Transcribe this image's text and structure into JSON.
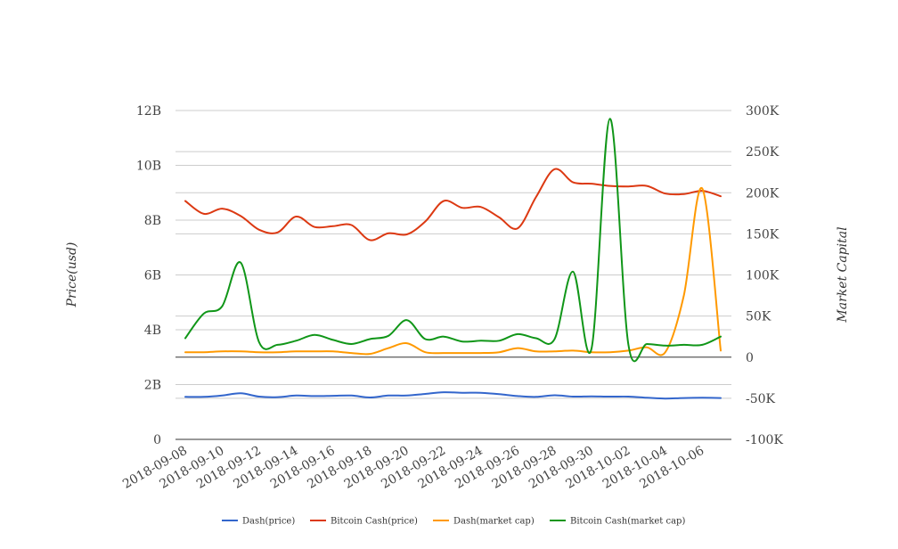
{
  "chart_data": {
    "type": "line",
    "title": "",
    "ylabel": "Price(usd)",
    "y2label": "Market Capital",
    "ylim": [
      0,
      12000000000
    ],
    "y2lim": [
      -100000,
      300000
    ],
    "y_ticks": [
      "0",
      "2B",
      "4B",
      "6B",
      "8B",
      "10B",
      "12B"
    ],
    "y_tick_values": [
      0,
      2000000000,
      4000000000,
      6000000000,
      8000000000,
      10000000000,
      12000000000
    ],
    "y2_ticks": [
      "-100K",
      "-50K",
      "0",
      "50K",
      "100K",
      "150K",
      "200K",
      "250K",
      "300K"
    ],
    "y2_tick_values": [
      -100000,
      -50000,
      0,
      50000,
      100000,
      150000,
      200000,
      250000,
      300000
    ],
    "x": [
      "2018-09-08",
      "2018-09-09",
      "2018-09-10",
      "2018-09-11",
      "2018-09-12",
      "2018-09-13",
      "2018-09-14",
      "2018-09-15",
      "2018-09-16",
      "2018-09-17",
      "2018-09-18",
      "2018-09-19",
      "2018-09-20",
      "2018-09-21",
      "2018-09-22",
      "2018-09-23",
      "2018-09-24",
      "2018-09-25",
      "2018-09-26",
      "2018-09-27",
      "2018-09-28",
      "2018-09-29",
      "2018-09-30",
      "2018-10-01",
      "2018-10-02",
      "2018-10-03",
      "2018-10-04",
      "2018-10-05",
      "2018-10-06",
      "2018-10-07"
    ],
    "x_tick_labels": [
      "2018-09-08",
      "2018-09-10",
      "2018-09-12",
      "2018-09-14",
      "2018-09-16",
      "2018-09-18",
      "2018-09-20",
      "2018-09-22",
      "2018-09-24",
      "2018-09-26",
      "2018-09-28",
      "2018-09-30",
      "2018-10-02",
      "2018-10-04",
      "2018-10-06"
    ],
    "grid": true,
    "legend_position": "bottom",
    "series": [
      {
        "name": "Dash(price)",
        "axis": "left",
        "color": "#3366cc",
        "values": [
          1550000000,
          1550000000,
          1600000000,
          1680000000,
          1560000000,
          1540000000,
          1600000000,
          1580000000,
          1590000000,
          1600000000,
          1530000000,
          1600000000,
          1600000000,
          1660000000,
          1720000000,
          1700000000,
          1700000000,
          1650000000,
          1580000000,
          1550000000,
          1610000000,
          1560000000,
          1570000000,
          1560000000,
          1560000000,
          1520000000,
          1490000000,
          1510000000,
          1520000000,
          1510000000
        ]
      },
      {
        "name": "Bitcoin Cash(price)",
        "axis": "left",
        "color": "#dc3912",
        "values": [
          8700000000,
          8230000000,
          8420000000,
          8150000000,
          7650000000,
          7550000000,
          8130000000,
          7750000000,
          7780000000,
          7820000000,
          7270000000,
          7520000000,
          7480000000,
          7950000000,
          8700000000,
          8450000000,
          8480000000,
          8100000000,
          7700000000,
          8850000000,
          9860000000,
          9380000000,
          9330000000,
          9250000000,
          9230000000,
          9250000000,
          8970000000,
          8950000000,
          9070000000,
          8870000000
        ]
      },
      {
        "name": "Dash(market cap)",
        "axis": "right",
        "color": "#ff9900",
        "values": [
          6000,
          6000,
          7000,
          7000,
          6000,
          6000,
          7000,
          7000,
          7000,
          5000,
          4000,
          11000,
          17000,
          6000,
          5000,
          5000,
          5000,
          6000,
          11000,
          7000,
          7000,
          8000,
          6000,
          6000,
          8000,
          12000,
          6000,
          75000,
          205000,
          8000
        ]
      },
      {
        "name": "Bitcoin Cash(market cap)",
        "axis": "right",
        "color": "#109618",
        "values": [
          23000,
          53000,
          62000,
          115000,
          18000,
          15000,
          20000,
          27000,
          21000,
          16000,
          22000,
          26000,
          45000,
          22000,
          25000,
          19000,
          20000,
          20000,
          28000,
          23000,
          22000,
          104000,
          10000,
          290000,
          15000,
          16000,
          14000,
          15000,
          15000,
          25000
        ]
      }
    ]
  }
}
